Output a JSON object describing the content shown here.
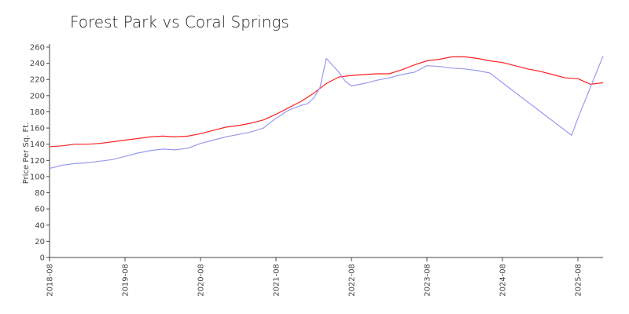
{
  "chart_data": {
    "type": "line",
    "title": "Forest Park vs Coral Springs",
    "xlabel": "",
    "ylabel": "Price Per Sq. Ft.",
    "ylim": [
      0,
      260
    ],
    "yticks": [
      0,
      20,
      40,
      60,
      80,
      100,
      120,
      140,
      160,
      180,
      200,
      220,
      240,
      260
    ],
    "xlim": [
      "2018-08",
      "2025-12"
    ],
    "xticks": [
      "2018-08",
      "2019-08",
      "2020-08",
      "2021-08",
      "2022-08",
      "2023-08",
      "2024-08",
      "2025-08"
    ],
    "grid": false,
    "legend": "none",
    "series": [
      {
        "color": "#ff2020",
        "points": [
          [
            "2018-08",
            137
          ],
          [
            "2018-10",
            138
          ],
          [
            "2018-12",
            140
          ],
          [
            "2019-02",
            140
          ],
          [
            "2019-04",
            141
          ],
          [
            "2019-06",
            143
          ],
          [
            "2019-08",
            145
          ],
          [
            "2019-10",
            147
          ],
          [
            "2019-12",
            149
          ],
          [
            "2020-02",
            150
          ],
          [
            "2020-04",
            149
          ],
          [
            "2020-06",
            150
          ],
          [
            "2020-08",
            153
          ],
          [
            "2020-10",
            157
          ],
          [
            "2020-12",
            161
          ],
          [
            "2021-02",
            163
          ],
          [
            "2021-04",
            166
          ],
          [
            "2021-06",
            170
          ],
          [
            "2021-08",
            177
          ],
          [
            "2021-10",
            185
          ],
          [
            "2021-12",
            193
          ],
          [
            "2022-02",
            203
          ],
          [
            "2022-04",
            215
          ],
          [
            "2022-06",
            223
          ],
          [
            "2022-08",
            225
          ],
          [
            "2022-10",
            226
          ],
          [
            "2022-12",
            227
          ],
          [
            "2023-02",
            227
          ],
          [
            "2023-04",
            232
          ],
          [
            "2023-06",
            238
          ],
          [
            "2023-08",
            243
          ],
          [
            "2023-10",
            245
          ],
          [
            "2023-12",
            248
          ],
          [
            "2024-02",
            248
          ],
          [
            "2024-04",
            246
          ],
          [
            "2024-06",
            243
          ],
          [
            "2024-08",
            241
          ],
          [
            "2024-10",
            237
          ],
          [
            "2024-12",
            233
          ],
          [
            "2025-02",
            230
          ],
          [
            "2025-04",
            226
          ],
          [
            "2025-06",
            222
          ],
          [
            "2025-08",
            221
          ],
          [
            "2025-10",
            214
          ],
          [
            "2025-12",
            216
          ]
        ]
      },
      {
        "color": "#9999ee",
        "points": [
          [
            "2018-08",
            110
          ],
          [
            "2018-10",
            114
          ],
          [
            "2018-12",
            116
          ],
          [
            "2019-02",
            117
          ],
          [
            "2019-04",
            119
          ],
          [
            "2019-06",
            121
          ],
          [
            "2019-08",
            125
          ],
          [
            "2019-10",
            129
          ],
          [
            "2019-12",
            132
          ],
          [
            "2020-02",
            134
          ],
          [
            "2020-04",
            133
          ],
          [
            "2020-06",
            135
          ],
          [
            "2020-08",
            141
          ],
          [
            "2020-10",
            145
          ],
          [
            "2020-12",
            149
          ],
          [
            "2021-02",
            152
          ],
          [
            "2021-04",
            155
          ],
          [
            "2021-06",
            160
          ],
          [
            "2021-08",
            172
          ],
          [
            "2021-10",
            182
          ],
          [
            "2021-12",
            188
          ],
          [
            "2022-01",
            190
          ],
          [
            "2022-02",
            197
          ],
          [
            "2022-03",
            210
          ],
          [
            "2022-04",
            246
          ],
          [
            "2022-06",
            229
          ],
          [
            "2022-07",
            218
          ],
          [
            "2022-08",
            212
          ],
          [
            "2022-10",
            215
          ],
          [
            "2022-12",
            219
          ],
          [
            "2023-02",
            222
          ],
          [
            "2023-04",
            226
          ],
          [
            "2023-06",
            229
          ],
          [
            "2023-08",
            237
          ],
          [
            "2023-10",
            236
          ],
          [
            "2023-12",
            234
          ],
          [
            "2024-02",
            233
          ],
          [
            "2024-04",
            231
          ],
          [
            "2024-06",
            228
          ],
          [
            "2024-08",
            216
          ],
          [
            "2025-07",
            151
          ],
          [
            "2025-08",
            172
          ],
          [
            "2025-12",
            249
          ]
        ]
      }
    ]
  }
}
